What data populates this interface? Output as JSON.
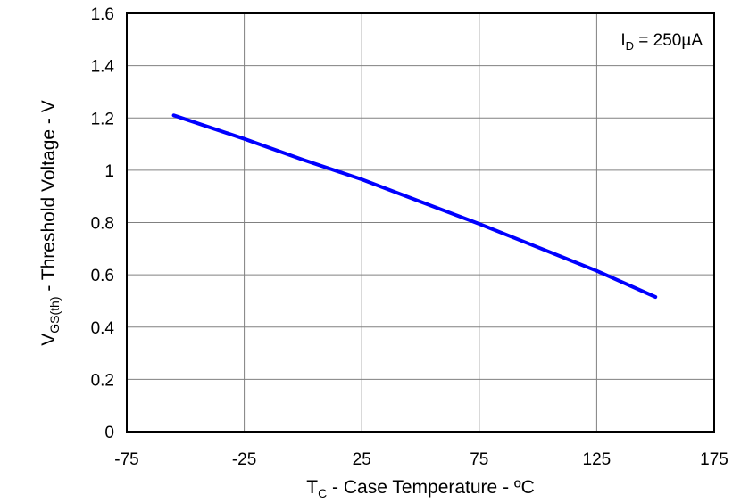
{
  "chart_data": {
    "type": "line",
    "title": "",
    "xlabel": {
      "main": "T",
      "sub": "C",
      "rest": " - Case Temperature - ºC"
    },
    "ylabel": {
      "main": "V",
      "sub": "GS(th)",
      "rest": " - Threshold Voltage - V"
    },
    "xlim": [
      -75,
      175
    ],
    "ylim": [
      0,
      1.6
    ],
    "xticks": [
      -75,
      -25,
      25,
      75,
      125,
      175
    ],
    "yticks": [
      0,
      0.2,
      0.4,
      0.6,
      0.8,
      1.0,
      1.2,
      1.4,
      1.6
    ],
    "xtick_labels": [
      "-75",
      "-25",
      "25",
      "75",
      "125",
      "175"
    ],
    "ytick_labels": [
      "0",
      "0.2",
      "0.4",
      "0.6",
      "0.8",
      "1",
      "1.2",
      "1.4",
      "1.6"
    ],
    "grid": true,
    "annotation": {
      "main": "I",
      "sub": "D",
      "rest": " = 250µA",
      "placement": "top-right"
    },
    "series": [
      {
        "color": "#0000ff",
        "x": [
          -55,
          -25,
          0,
          25,
          50,
          75,
          100,
          125,
          150
        ],
        "y": [
          1.21,
          1.12,
          1.04,
          0.965,
          0.88,
          0.795,
          0.705,
          0.615,
          0.515
        ]
      }
    ]
  }
}
